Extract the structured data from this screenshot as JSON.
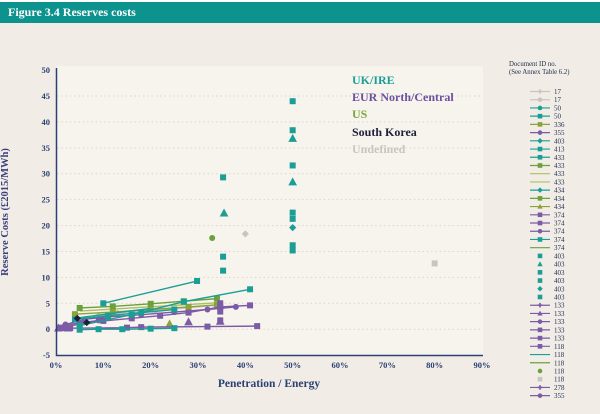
{
  "header": {
    "title": "Figure 3.4 Reserves costs"
  },
  "legend_panel": {
    "title_line1": "Document ID no.",
    "title_line2": "(See Annex Table 6.2)",
    "entries": [
      {
        "label": "17",
        "color": "gray",
        "marker": "plus",
        "line": true
      },
      {
        "label": "17",
        "color": "gray",
        "marker": "circle",
        "line": true
      },
      {
        "label": "50",
        "color": "teal",
        "marker": "circle",
        "line": true
      },
      {
        "label": "50",
        "color": "teal",
        "marker": "square",
        "line": true
      },
      {
        "label": "336",
        "color": "olive",
        "marker": "square",
        "line": true
      },
      {
        "label": "355",
        "color": "purple",
        "marker": "circle",
        "line": true
      },
      {
        "label": "403",
        "color": "teal",
        "marker": "diamond",
        "line": true
      },
      {
        "label": "413",
        "color": "teal",
        "marker": "square",
        "line": true
      },
      {
        "label": "433",
        "color": "teal",
        "marker": "square",
        "line": true
      },
      {
        "label": "433",
        "color": "green",
        "marker": "square",
        "line": true
      },
      {
        "label": "433",
        "color": "lightgreen",
        "marker": null,
        "line": true
      },
      {
        "label": "433",
        "color": "lightgreen",
        "marker": null,
        "line": true
      },
      {
        "label": "434",
        "color": "teal",
        "marker": "diamond",
        "line": true
      },
      {
        "label": "434",
        "color": "green",
        "marker": "square",
        "line": true
      },
      {
        "label": "434",
        "color": "olive",
        "marker": "triangle",
        "line": true
      },
      {
        "label": "374",
        "color": "purple",
        "marker": "square",
        "line": true
      },
      {
        "label": "374",
        "color": "purple",
        "marker": "square",
        "line": true
      },
      {
        "label": "374",
        "color": "purple",
        "marker": "circle",
        "line": true
      },
      {
        "label": "374",
        "color": "teal",
        "marker": "square",
        "line": true
      },
      {
        "label": "374",
        "color": "green",
        "marker": null,
        "line": true
      },
      {
        "label": "403",
        "color": "teal",
        "marker": "square",
        "line": false
      },
      {
        "label": "403",
        "color": "teal",
        "marker": "triangle",
        "line": false
      },
      {
        "label": "403",
        "color": "teal",
        "marker": "square",
        "line": false
      },
      {
        "label": "403",
        "color": "teal",
        "marker": "square",
        "line": false
      },
      {
        "label": "403",
        "color": "teal",
        "marker": "diamond",
        "line": false
      },
      {
        "label": "403",
        "color": "teal",
        "marker": "square",
        "line": false
      },
      {
        "label": "133",
        "color": "purple",
        "marker": "plus",
        "line": true
      },
      {
        "label": "133",
        "color": "purple",
        "marker": "triangle",
        "line": true
      },
      {
        "label": "133",
        "color": "purple",
        "marker": "circle",
        "line": true
      },
      {
        "label": "133",
        "color": "purple",
        "marker": "square",
        "line": true
      },
      {
        "label": "133",
        "color": "purple",
        "marker": "square",
        "line": true
      },
      {
        "label": "118",
        "color": "purple",
        "marker": "square",
        "line": true
      },
      {
        "label": "118",
        "color": "teal",
        "marker": null,
        "line": true
      },
      {
        "label": "118",
        "color": "green",
        "marker": null,
        "line": true
      },
      {
        "label": "118",
        "color": "green",
        "marker": "circle",
        "line": false
      },
      {
        "label": "118",
        "color": "gray",
        "marker": "square",
        "line": false
      },
      {
        "label": "278",
        "color": "purple",
        "marker": "plus",
        "line": true
      },
      {
        "label": "355",
        "color": "purple",
        "marker": "circle",
        "line": true
      }
    ]
  },
  "region_legend": [
    {
      "label": "UK/IRE",
      "color": "teal"
    },
    {
      "label": "EUR North/Central",
      "color": "purple_dark"
    },
    {
      "label": "US",
      "color": "us_label"
    },
    {
      "label": "South Korea",
      "color": "navy"
    },
    {
      "label": "Undefined",
      "color": "gray"
    }
  ],
  "colors": {
    "header_bg": "#0d938d",
    "page_bg": "#f1ede6",
    "plot_bg": "#f7f4ee",
    "axis": "#2b4073",
    "grid": "#dbd5cc",
    "teal": "#1a9e96",
    "purple": "#7b5ba6",
    "purple_dark": "#6b4fa0",
    "green": "#6ba03d",
    "olive": "#8ca23a",
    "lightgreen": "#a9c162",
    "us_label": "#7da43c",
    "navy": "#1b2138",
    "gray": "#c8c5c0",
    "legend_text": "#22304f"
  },
  "chart_data": {
    "type": "scatter",
    "title": "Figure 3.4 Reserves costs",
    "xlabel": "Penetration / Energy",
    "ylabel": "Reserve Costs (£2015/MWh)",
    "xlim": [
      0,
      90
    ],
    "ylim": [
      -5,
      50
    ],
    "xticks": [
      "0%",
      "10%",
      "20%",
      "30%",
      "40%",
      "50%",
      "60%",
      "70%",
      "80%",
      "90%"
    ],
    "yticks": [
      50,
      45,
      40,
      35,
      30,
      25,
      20,
      15,
      10,
      5,
      0,
      -5
    ],
    "grid": "horizontal-dotted",
    "legend_position": "right",
    "series": [
      {
        "region": "Undefined",
        "doc_id": "17",
        "color": "gray",
        "marker": "diamond",
        "line": true,
        "points": [
          [
            9,
            2.6
          ],
          [
            13,
            3.1
          ],
          [
            21,
            3.6
          ],
          [
            34,
            4.6
          ]
        ]
      },
      {
        "region": "Undefined",
        "doc_id": "17",
        "color": "gray",
        "marker": "diamond",
        "line": false,
        "points": [
          [
            40,
            18.4
          ]
        ]
      },
      {
        "region": "Undefined",
        "doc_id": "118",
        "color": "gray",
        "marker": "square",
        "line": false,
        "points": [
          [
            80,
            12.7
          ]
        ]
      },
      {
        "region": "US",
        "doc_id": "433",
        "color": "lightgreen",
        "marker": null,
        "line": true,
        "points": [
          [
            5,
            3.5
          ],
          [
            34,
            5.1
          ]
        ]
      },
      {
        "region": "US",
        "doc_id": "433",
        "color": "green",
        "marker": "square",
        "line": true,
        "points": [
          [
            5,
            4.1
          ],
          [
            12,
            4.4
          ],
          [
            20,
            4.9
          ],
          [
            27,
            5.4
          ],
          [
            34,
            5.9
          ]
        ]
      },
      {
        "region": "US",
        "doc_id": "434",
        "color": "olive",
        "marker": "square",
        "line": true,
        "points": [
          [
            4,
            2.9
          ],
          [
            12,
            3.3
          ],
          [
            20,
            3.8
          ],
          [
            28,
            4.3
          ],
          [
            34,
            4.7
          ]
        ]
      },
      {
        "region": "US",
        "doc_id": "118",
        "color": "green",
        "marker": "circle",
        "line": false,
        "points": [
          [
            33,
            17.6
          ]
        ]
      },
      {
        "region": "US",
        "doc_id": "336",
        "color": "olive",
        "marker": "triangle",
        "line": false,
        "points": [
          [
            24,
            1
          ]
        ]
      },
      {
        "region": "EUR North/Central",
        "doc_id": "374",
        "color": "purple",
        "marker": "square",
        "line": true,
        "points": [
          [
            1,
            0.3
          ],
          [
            5,
            1
          ],
          [
            10,
            1.6
          ],
          [
            16,
            2.1
          ],
          [
            22,
            2.6
          ],
          [
            28,
            3.2
          ],
          [
            34.7,
            4.3
          ],
          [
            41,
            4.6
          ]
        ]
      },
      {
        "region": "EUR North/Central",
        "doc_id": "374",
        "color": "purple",
        "marker": "circle",
        "line": true,
        "points": [
          [
            2,
            0.9
          ],
          [
            6,
            1.9
          ],
          [
            11,
            2.4
          ],
          [
            18,
            2.8
          ],
          [
            25,
            3.3
          ],
          [
            32,
            3.8
          ],
          [
            38,
            4.3
          ]
        ]
      },
      {
        "region": "EUR North/Central",
        "doc_id": "133",
        "color": "purple",
        "marker": "square",
        "line": true,
        "points": [
          [
            3,
            0.2
          ],
          [
            15,
            0.3
          ],
          [
            18,
            0.4
          ],
          [
            32,
            0.5
          ],
          [
            42.5,
            0.6
          ]
        ]
      },
      {
        "region": "EUR North/Central",
        "doc_id": "133",
        "color": "purple",
        "marker": "square",
        "line": false,
        "points": [
          [
            34.7,
            5
          ],
          [
            34.7,
            3.4
          ],
          [
            34.7,
            1.7
          ]
        ]
      },
      {
        "region": "EUR North/Central",
        "doc_id": "133",
        "color": "purple",
        "marker": "triangle",
        "line": false,
        "points": [
          [
            0.5,
            0.2
          ],
          [
            1.5,
            0.3
          ],
          [
            2.5,
            0.2
          ],
          [
            28,
            1.4
          ],
          [
            34.7,
            1.5
          ]
        ]
      },
      {
        "region": "EUR North/Central",
        "doc_id": "355",
        "color": "purple",
        "marker": "circle",
        "line": true,
        "points": [
          [
            2,
            0.8
          ],
          [
            5,
            1.2
          ],
          [
            9,
            1.7
          ]
        ]
      },
      {
        "region": "UK/IRE",
        "doc_id": "118",
        "color": "teal",
        "marker": null,
        "line": true,
        "points": [
          [
            4,
            2.1
          ],
          [
            12,
            3.1
          ],
          [
            20,
            4
          ]
        ]
      },
      {
        "region": "UK/IRE",
        "doc_id": "413",
        "color": "teal",
        "marker": "square",
        "line": true,
        "points": [
          [
            4,
            1.9
          ],
          [
            11,
            2.6
          ],
          [
            18,
            3.2
          ],
          [
            25,
            3.8
          ]
        ]
      },
      {
        "region": "UK/IRE",
        "doc_id": "374",
        "color": "teal",
        "marker": "square",
        "line": true,
        "points": [
          [
            5,
            -0.1
          ],
          [
            9,
            0
          ],
          [
            14,
            0
          ],
          [
            20,
            0.1
          ],
          [
            25,
            0.2
          ]
        ]
      },
      {
        "region": "UK/IRE",
        "doc_id": "403",
        "color": "teal",
        "marker": "square",
        "line": true,
        "points": [
          [
            5,
            0.7
          ],
          [
            16,
            2.8
          ],
          [
            27,
            5.3
          ],
          [
            41,
            7.7
          ]
        ]
      },
      {
        "region": "UK/IRE",
        "doc_id": "50",
        "color": "teal",
        "marker": "square",
        "line": true,
        "points": [
          [
            10,
            5
          ],
          [
            29.8,
            9.3
          ]
        ]
      },
      {
        "region": "UK/IRE",
        "doc_id": "403",
        "color": "teal",
        "marker": "square",
        "line": false,
        "points": [
          [
            50,
            44
          ],
          [
            50,
            38.4
          ],
          [
            50,
            31.6
          ],
          [
            50,
            22.5
          ],
          [
            50,
            21.3
          ],
          [
            50,
            16.2
          ],
          [
            50,
            15.2
          ],
          [
            35.3,
            29.3
          ],
          [
            35.3,
            14
          ],
          [
            35.3,
            11.3
          ]
        ]
      },
      {
        "region": "UK/IRE",
        "doc_id": "403",
        "color": "teal",
        "marker": "triangle",
        "line": false,
        "points": [
          [
            50,
            36.8
          ],
          [
            50,
            28.4
          ],
          [
            35.5,
            22.4
          ]
        ]
      },
      {
        "region": "UK/IRE",
        "doc_id": "403",
        "color": "teal",
        "marker": "diamond",
        "line": false,
        "points": [
          [
            50,
            19.6
          ]
        ]
      },
      {
        "region": "South Korea",
        "doc_id": "",
        "color": "navy",
        "marker": "diamond",
        "line": false,
        "points": [
          [
            4.5,
            2.1
          ],
          [
            6.5,
            1.3
          ]
        ]
      }
    ]
  }
}
